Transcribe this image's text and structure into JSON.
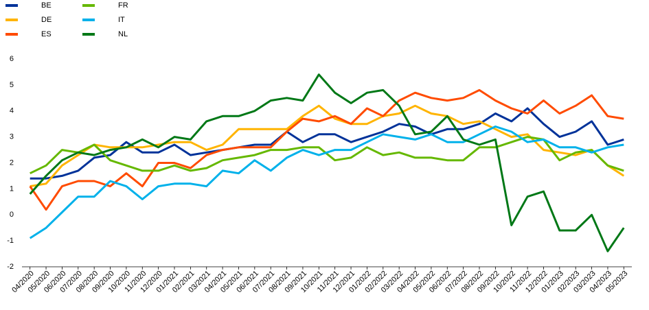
{
  "chart_data": {
    "type": "line",
    "categories": [
      "04/2020",
      "05/2020",
      "06/2020",
      "07/2020",
      "08/2020",
      "09/2020",
      "10/2020",
      "11/2020",
      "12/2020",
      "01/2021",
      "02/2021",
      "03/2021",
      "04/2021",
      "05/2021",
      "06/2021",
      "07/2021",
      "08/2021",
      "09/2021",
      "10/2021",
      "11/2021",
      "12/2021",
      "01/2022",
      "02/2022",
      "03/2022",
      "04/2022",
      "05/2022",
      "06/2022",
      "07/2022",
      "08/2022",
      "09/2022",
      "10/2022",
      "11/2022",
      "12/2022",
      "01/2023",
      "02/2023",
      "03/2023",
      "04/2023",
      "05/2023"
    ],
    "series": [
      {
        "name": "BE",
        "color": "#003299",
        "values": [
          1.4,
          1.4,
          1.5,
          1.7,
          2.2,
          2.3,
          2.8,
          2.4,
          2.4,
          2.7,
          2.3,
          2.4,
          2.5,
          2.6,
          2.7,
          2.7,
          3.2,
          2.8,
          3.1,
          3.1,
          2.8,
          3.0,
          3.2,
          3.5,
          3.4,
          3.1,
          3.3,
          3.3,
          3.5,
          3.9,
          3.6,
          4.1,
          3.5,
          3.0,
          3.2,
          3.6,
          2.7,
          2.9
        ]
      },
      {
        "name": "DE",
        "color": "#ffb400",
        "values": [
          1.1,
          1.2,
          1.9,
          2.3,
          2.7,
          2.6,
          2.6,
          2.6,
          2.7,
          2.8,
          2.8,
          2.5,
          2.7,
          3.3,
          3.3,
          3.3,
          3.3,
          3.8,
          4.2,
          3.7,
          3.5,
          3.5,
          3.8,
          3.9,
          4.2,
          3.9,
          3.8,
          3.5,
          3.6,
          3.3,
          3.0,
          3.1,
          2.5,
          2.4,
          2.3,
          2.5,
          1.9,
          1.5
        ]
      },
      {
        "name": "ES",
        "color": "#ff4b00",
        "values": [
          1.1,
          0.2,
          1.1,
          1.3,
          1.3,
          1.1,
          1.6,
          1.1,
          2.0,
          2.0,
          1.8,
          2.3,
          2.5,
          2.6,
          2.6,
          2.6,
          3.2,
          3.7,
          3.6,
          3.8,
          3.5,
          4.1,
          3.8,
          4.4,
          4.7,
          4.5,
          4.4,
          4.5,
          4.8,
          4.4,
          4.1,
          3.9,
          4.4,
          3.9,
          4.2,
          4.6,
          3.8,
          3.7
        ]
      },
      {
        "name": "FR",
        "color": "#65b800",
        "values": [
          1.6,
          1.9,
          2.5,
          2.4,
          2.7,
          2.1,
          1.9,
          1.7,
          1.7,
          1.9,
          1.7,
          1.8,
          2.1,
          2.2,
          2.3,
          2.5,
          2.5,
          2.6,
          2.6,
          2.1,
          2.2,
          2.6,
          2.3,
          2.4,
          2.2,
          2.2,
          2.1,
          2.1,
          2.6,
          2.6,
          2.8,
          3.0,
          2.9,
          2.1,
          2.4,
          2.5,
          1.9,
          1.7
        ]
      },
      {
        "name": "IT",
        "color": "#00b1ea",
        "values": [
          -0.9,
          -0.5,
          0.1,
          0.7,
          0.7,
          1.3,
          1.1,
          0.6,
          1.1,
          1.2,
          1.2,
          1.1,
          1.7,
          1.6,
          2.1,
          1.7,
          2.2,
          2.5,
          2.3,
          2.5,
          2.5,
          2.8,
          3.1,
          3.0,
          2.9,
          3.1,
          2.8,
          2.8,
          3.1,
          3.4,
          3.2,
          2.8,
          2.9,
          2.6,
          2.6,
          2.4,
          2.6,
          2.7
        ]
      },
      {
        "name": "NL",
        "color": "#007816",
        "values": [
          0.8,
          1.5,
          2.1,
          2.4,
          2.3,
          2.5,
          2.6,
          2.9,
          2.6,
          3.0,
          2.9,
          3.6,
          3.8,
          3.8,
          4.0,
          4.4,
          4.5,
          4.4,
          5.4,
          4.7,
          4.3,
          4.7,
          4.8,
          4.2,
          3.1,
          3.2,
          3.8,
          2.9,
          2.7,
          2.9,
          -0.4,
          0.7,
          0.9,
          -0.6,
          -0.6,
          0.0,
          -1.4,
          -0.5
        ]
      }
    ],
    "ylim": [
      -2,
      6
    ],
    "yticks": [
      -2,
      -1,
      0,
      1,
      2,
      3,
      4,
      5,
      6
    ],
    "grid": false
  }
}
